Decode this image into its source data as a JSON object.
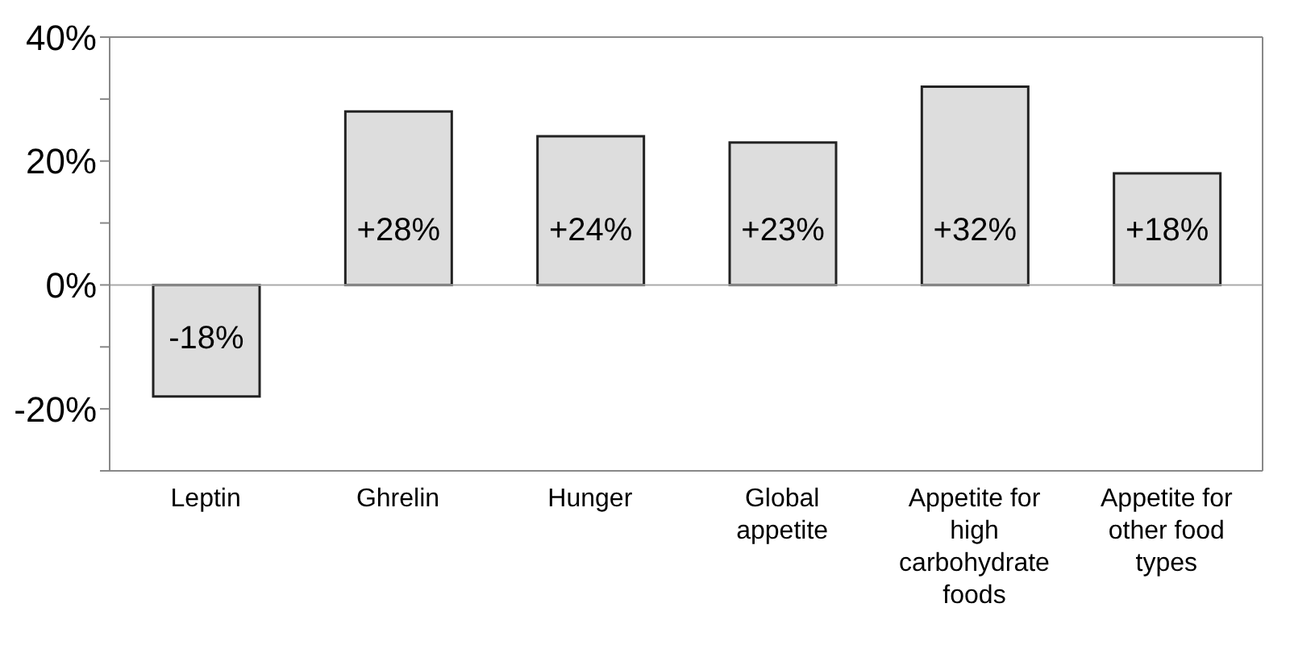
{
  "chart_data": {
    "type": "bar",
    "categories": [
      "Leptin",
      "Ghrelin",
      "Hunger",
      "Global appetite",
      "Appetite for high carbohydrate foods",
      "Appetite for other food types"
    ],
    "values": [
      -18,
      28,
      24,
      23,
      32,
      18
    ],
    "value_labels": [
      "-18%",
      "+28%",
      "+24%",
      "+23%",
      "+32%",
      "+18%"
    ],
    "color": "#dddddd",
    "ylim": [
      -30,
      40
    ],
    "yticks": [
      {
        "value": -30,
        "label": null
      },
      {
        "value": -20,
        "label": "-20%"
      },
      {
        "value": -10,
        "label": null
      },
      {
        "value": 0,
        "label": "0%"
      },
      {
        "value": 10,
        "label": null
      },
      {
        "value": 20,
        "label": "20%"
      },
      {
        "value": 30,
        "label": null
      },
      {
        "value": 40,
        "label": "40%"
      }
    ],
    "ref_lines": [
      {
        "axis": "y",
        "value": 0,
        "color": "#aaaaaa"
      }
    ],
    "legend": false
  }
}
